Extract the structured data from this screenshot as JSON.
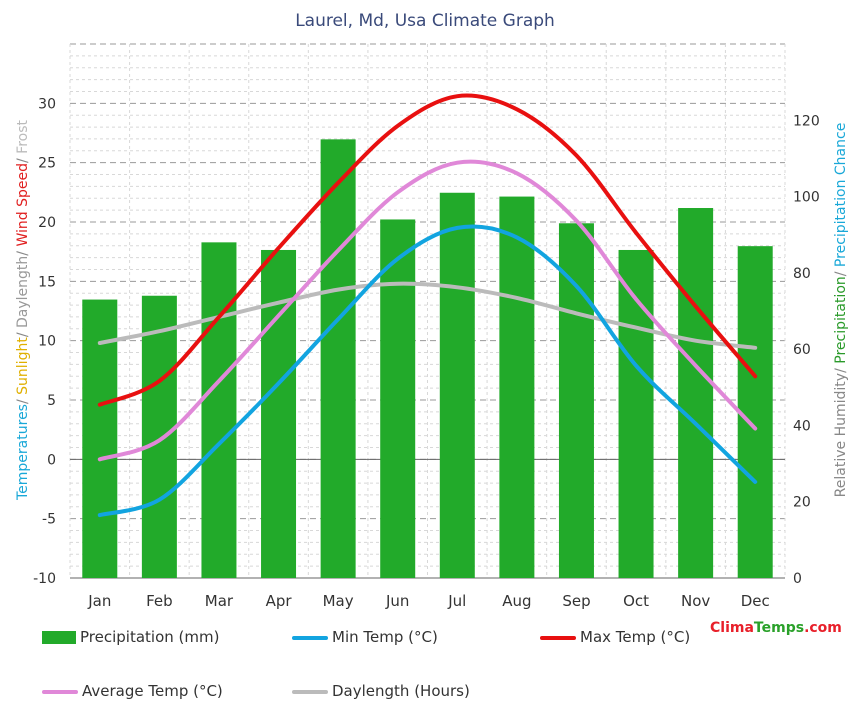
{
  "chart_data": {
    "type": "bar+line",
    "title": "Laurel, Md, Usa Climate Graph",
    "categories": [
      "Jan",
      "Feb",
      "Mar",
      "Apr",
      "May",
      "Jun",
      "Jul",
      "Aug",
      "Sep",
      "Oct",
      "Nov",
      "Dec"
    ],
    "left_axis": {
      "title_parts": [
        {
          "text": "Temperatures",
          "color": "#19a8d8"
        },
        {
          "text": "/ ",
          "color": "#888888"
        },
        {
          "text": "Sunlight",
          "color": "#e0b000"
        },
        {
          "text": "/ ",
          "color": "#888888"
        },
        {
          "text": "Daylength",
          "color": "#999999"
        },
        {
          "text": "/ ",
          "color": "#888888"
        },
        {
          "text": "Wind Speed",
          "color": "#e02020"
        },
        {
          "text": "/ ",
          "color": "#888888"
        },
        {
          "text": "Frost",
          "color": "#bbbbbb"
        }
      ],
      "range": [
        -10,
        35
      ],
      "ticks": [
        -10,
        -5,
        0,
        5,
        10,
        15,
        20,
        25,
        30
      ]
    },
    "right_axis": {
      "title_parts": [
        {
          "text": "Relative Humidity",
          "color": "#888888"
        },
        {
          "text": "/ ",
          "color": "#888888"
        },
        {
          "text": "Precipitation",
          "color": "#2a9a2a"
        },
        {
          "text": "/ ",
          "color": "#888888"
        },
        {
          "text": "Precipitation Chance",
          "color": "#19a8d8"
        }
      ],
      "range": [
        0,
        140
      ],
      "ticks": [
        0,
        20,
        40,
        60,
        80,
        100,
        120
      ]
    },
    "precipitation": {
      "name": "Precipitation (mm)",
      "color": "#22aa2a",
      "values": [
        73,
        74,
        88,
        86,
        115,
        94,
        101,
        100,
        93,
        86,
        97,
        87
      ]
    },
    "series": [
      {
        "name": "Min Temp (°C)",
        "color": "#12a4e0",
        "values": [
          -4.7,
          -3.4,
          1.3,
          6.4,
          11.8,
          16.9,
          19.5,
          18.7,
          14.6,
          7.9,
          3.0,
          -1.9
        ]
      },
      {
        "name": "Max Temp (°C)",
        "color": "#e81010",
        "values": [
          4.6,
          6.6,
          12.0,
          17.8,
          23.3,
          28.1,
          30.6,
          29.5,
          25.6,
          19.1,
          12.9,
          7.0
        ]
      },
      {
        "name": "Average Temp (°C)",
        "color": "#e088d8",
        "values": [
          0.0,
          1.6,
          6.6,
          12.1,
          17.6,
          22.5,
          25.0,
          24.1,
          20.1,
          13.5,
          7.9,
          2.6
        ]
      },
      {
        "name": "Daylength (Hours)",
        "color": "#bbbbbb",
        "values": [
          9.8,
          10.8,
          12.0,
          13.2,
          14.3,
          14.8,
          14.5,
          13.6,
          12.3,
          11.1,
          10.0,
          9.4
        ]
      }
    ],
    "grid": true
  },
  "legend": [
    {
      "label": "Precipitation (mm)",
      "color": "#22aa2a",
      "kind": "box"
    },
    {
      "label": "Min Temp (°C)",
      "color": "#12a4e0",
      "kind": "line"
    },
    {
      "label": "Max Temp (°C)",
      "color": "#e81010",
      "kind": "line"
    },
    {
      "label": "Average Temp (°C)",
      "color": "#e088d8",
      "kind": "line"
    },
    {
      "label": "Daylength (Hours)",
      "color": "#bbbbbb",
      "kind": "line"
    }
  ],
  "brand": {
    "part1": "Clima",
    "part2": "Temps",
    "part3": ".com"
  }
}
